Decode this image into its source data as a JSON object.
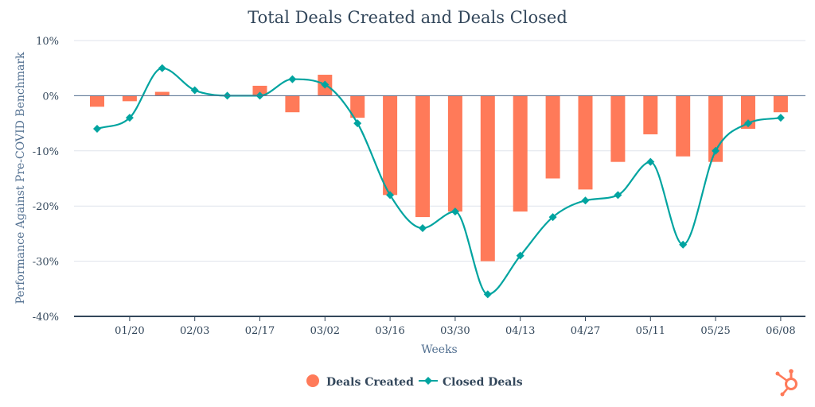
{
  "chart_data": {
    "type": "bar",
    "title": "Total Deals Created and Deals Closed",
    "xlabel": "Weeks",
    "ylabel": "Performance Against Pre-COVID Benchmark",
    "ylim": [
      -40,
      10
    ],
    "y_ticks": [
      "10%",
      "0%",
      "-10%",
      "-20%",
      "-30%",
      "-40%"
    ],
    "y_tick_values": [
      10,
      0,
      -10,
      -20,
      -30,
      -40
    ],
    "x_tick_labels": [
      "01/20",
      "02/03",
      "02/17",
      "03/02",
      "03/16",
      "03/30",
      "04/13",
      "04/27",
      "05/11",
      "05/25",
      "06/08"
    ],
    "x_tick_indices": [
      1,
      3,
      5,
      7,
      9,
      11,
      13,
      15,
      17,
      19,
      21
    ],
    "num_weeks": 22,
    "grid": true,
    "legend_position": "bottom-center",
    "series": [
      {
        "name": "Deals Created",
        "type": "bar",
        "color": "#ff7a59",
        "values": [
          -2,
          -1,
          0.7,
          null,
          null,
          1.8,
          -3,
          3.8,
          -4,
          -18,
          -22,
          -21,
          -30,
          -21,
          -15,
          -17,
          -12,
          -7,
          -11,
          -12,
          -6,
          -3
        ]
      },
      {
        "name": "Closed Deals",
        "type": "line",
        "color": "#00a4a0",
        "values": [
          -6,
          -4,
          5,
          1,
          0,
          0,
          3,
          2,
          -5,
          -18,
          -24,
          -21,
          -36,
          -29,
          -22,
          -19,
          -18,
          -12,
          -27,
          -10,
          -5,
          -4
        ]
      }
    ]
  }
}
